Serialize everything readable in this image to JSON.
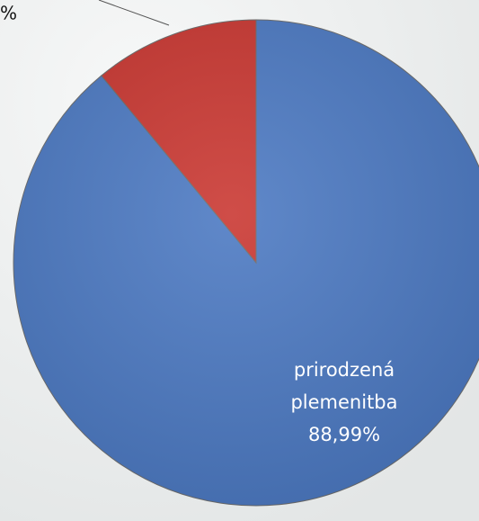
{
  "chart_data": {
    "type": "pie",
    "categories": [
      "prirodzená plemenitba",
      null
    ],
    "values": [
      88.99,
      11.01
    ],
    "value_labels": [
      "88,99%",
      "%"
    ],
    "colors": [
      "#4a78c2",
      "#c9352f"
    ]
  }
}
